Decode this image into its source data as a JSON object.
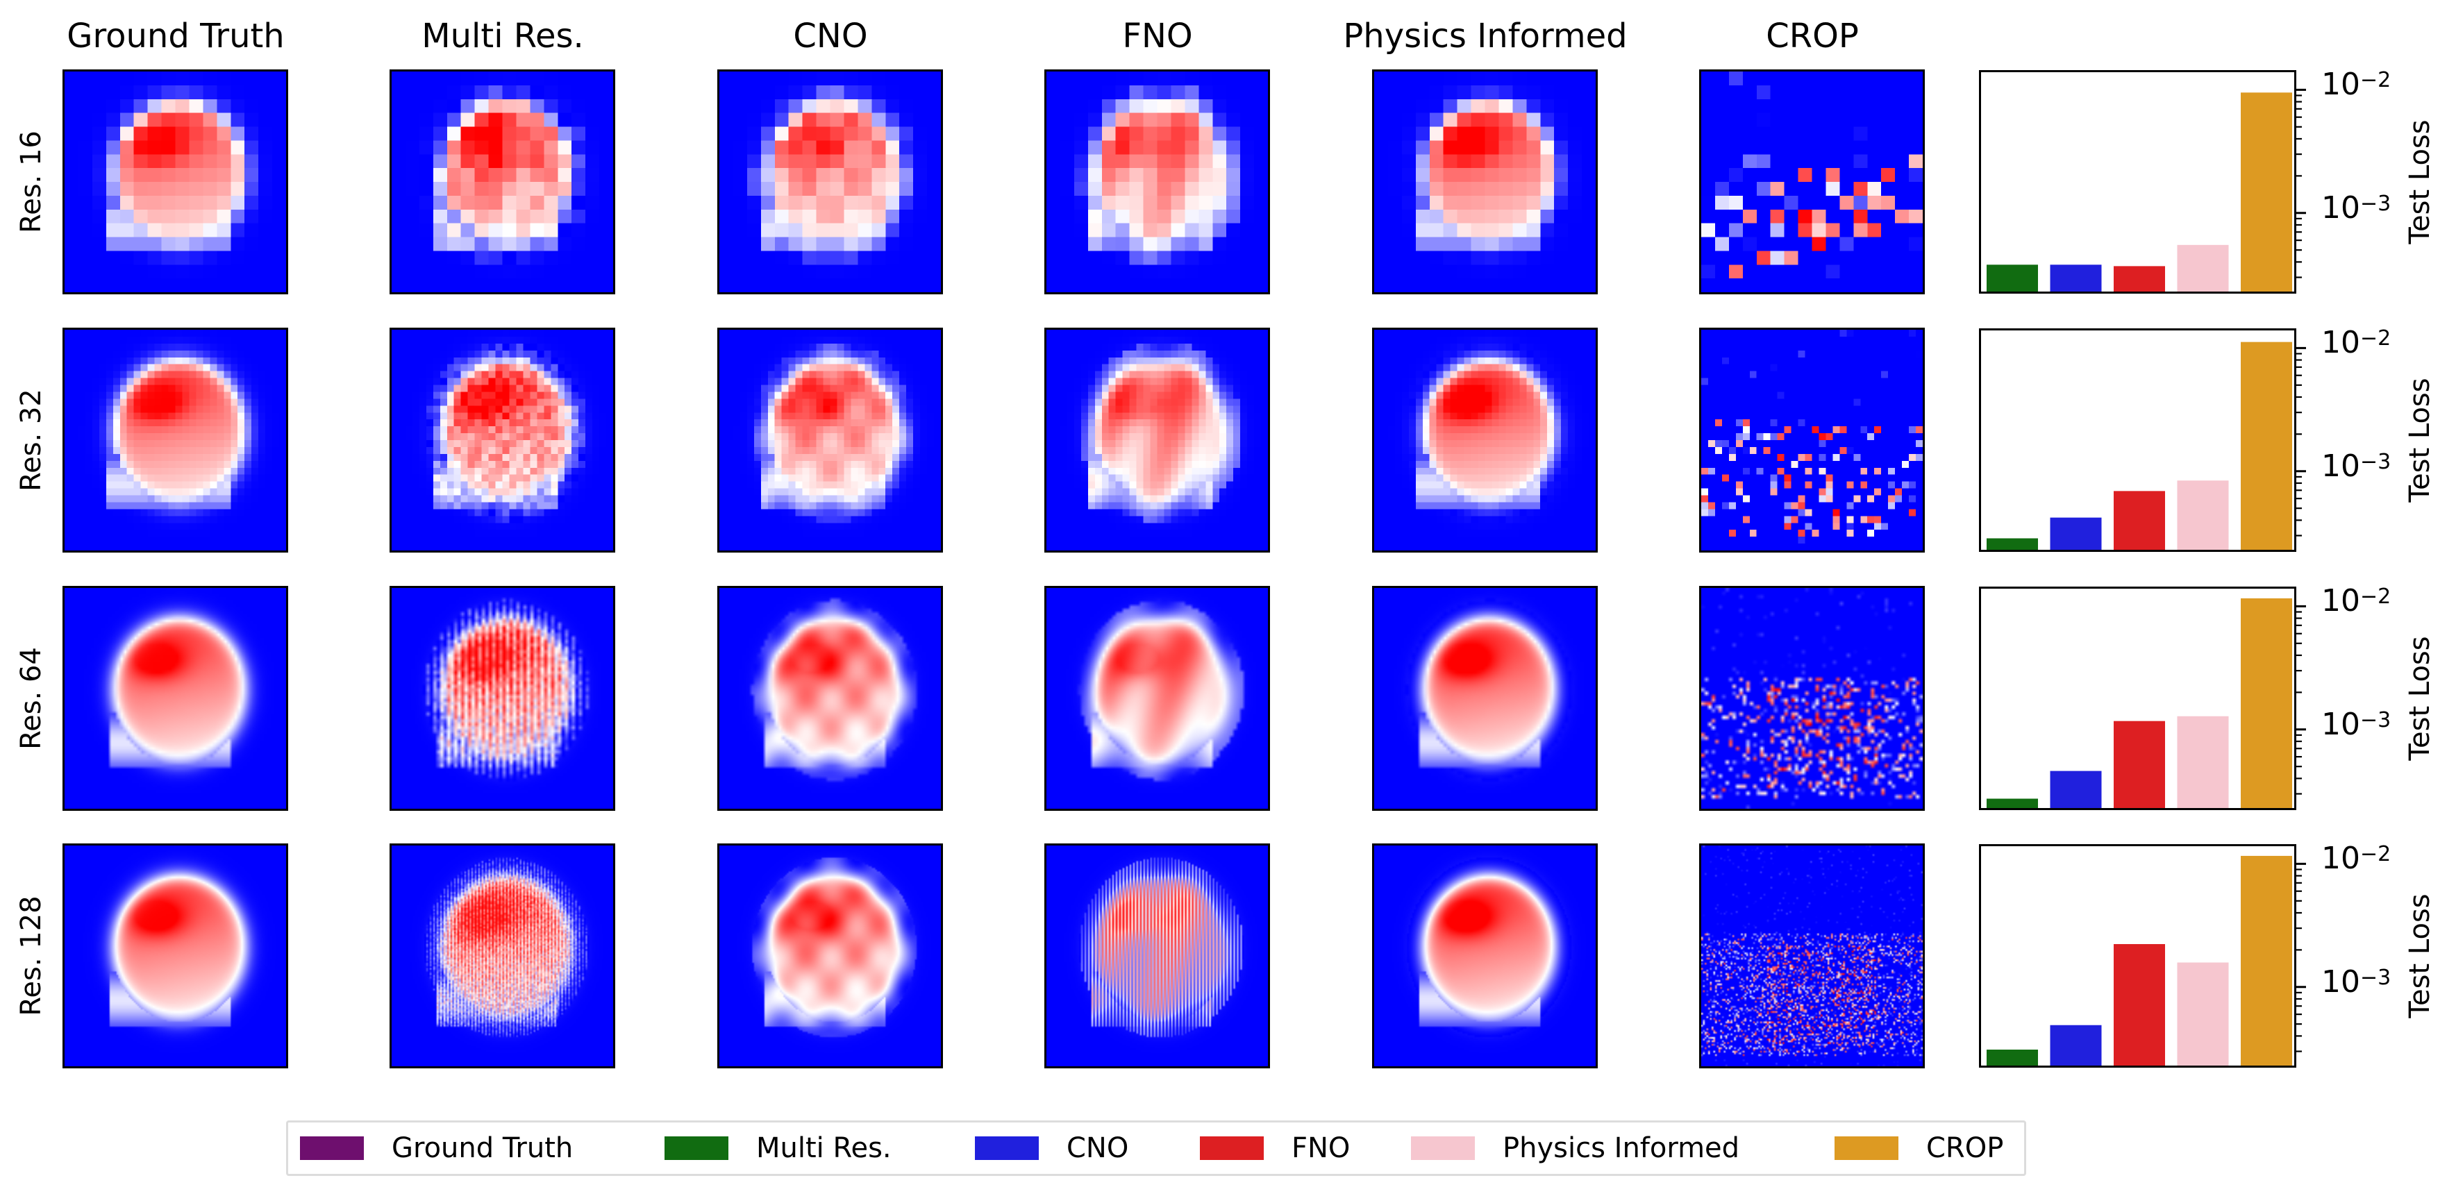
{
  "columns": [
    "Ground Truth",
    "Multi Res.",
    "CNO",
    "FNO",
    "Physics Informed",
    "CROP"
  ],
  "rows": [
    "Res. 16",
    "Res. 32",
    "Res. 64",
    "Res. 128"
  ],
  "resolutions": [
    16,
    32,
    64,
    128
  ],
  "colormap": {
    "low": "#0000ff",
    "mid": "#ffffff",
    "high": "#ff0000"
  },
  "chart_data": [
    {
      "type": "bar",
      "title": "Res. 16",
      "ylabel": "Test Loss",
      "yscale": "log",
      "ylim": [
        0.00023,
        0.0139
      ],
      "yticks": [
        {
          "base": "10",
          "exp": "−2",
          "value": 0.01
        },
        {
          "base": "10",
          "exp": "−3",
          "value": 0.001
        }
      ],
      "categories": [
        "Multi Res.",
        "CNO",
        "FNO",
        "Physics Informed",
        "CROP"
      ],
      "values": [
        0.00038,
        0.00038,
        0.00037,
        0.00055,
        0.0095
      ]
    },
    {
      "type": "bar",
      "title": "Res. 32",
      "ylabel": "Test Loss",
      "yscale": "log",
      "ylim": [
        0.00023,
        0.0139
      ],
      "yticks": [
        {
          "base": "10",
          "exp": "−2",
          "value": 0.01
        },
        {
          "base": "10",
          "exp": "−3",
          "value": 0.001
        }
      ],
      "categories": [
        "Multi Res.",
        "CNO",
        "FNO",
        "Physics Informed",
        "CROP"
      ],
      "values": [
        0.000285,
        0.00042,
        0.00069,
        0.00084,
        0.0112
      ]
    },
    {
      "type": "bar",
      "title": "Res. 64",
      "ylabel": "Test Loss",
      "yscale": "log",
      "ylim": [
        0.00023,
        0.0139
      ],
      "yticks": [
        {
          "base": "10",
          "exp": "−2",
          "value": 0.01
        },
        {
          "base": "10",
          "exp": "−3",
          "value": 0.001
        }
      ],
      "categories": [
        "Multi Res.",
        "CNO",
        "FNO",
        "Physics Informed",
        "CROP"
      ],
      "values": [
        0.000274,
        0.00046,
        0.00117,
        0.00128,
        0.0116
      ]
    },
    {
      "type": "bar",
      "title": "Res. 128",
      "ylabel": "Test Loss",
      "yscale": "log",
      "ylim": [
        0.00023,
        0.0139
      ],
      "yticks": [
        {
          "base": "10",
          "exp": "−2",
          "value": 0.01
        },
        {
          "base": "10",
          "exp": "−3",
          "value": 0.001
        }
      ],
      "categories": [
        "Multi Res.",
        "CNO",
        "FNO",
        "Physics Informed",
        "CROP"
      ],
      "values": [
        0.00031,
        0.00049,
        0.00223,
        0.00158,
        0.0116
      ]
    }
  ],
  "series_colors": {
    "Multi Res.": "#116c11",
    "CNO": "#2020dd",
    "FNO": "#dd1f22",
    "Physics Informed": "#f6c6cf",
    "CROP": "#dd9a22"
  },
  "legend": {
    "placement": "bottom-center",
    "items": [
      {
        "label": "Ground Truth",
        "color": "#6e0f6e"
      },
      {
        "label": "Multi Res.",
        "color": "#116c11"
      },
      {
        "label": "CNO",
        "color": "#2020dd"
      },
      {
        "label": "FNO",
        "color": "#dd1f22"
      },
      {
        "label": "Physics Informed",
        "color": "#f6c6cf"
      },
      {
        "label": "CROP",
        "color": "#dd9a22"
      }
    ]
  }
}
